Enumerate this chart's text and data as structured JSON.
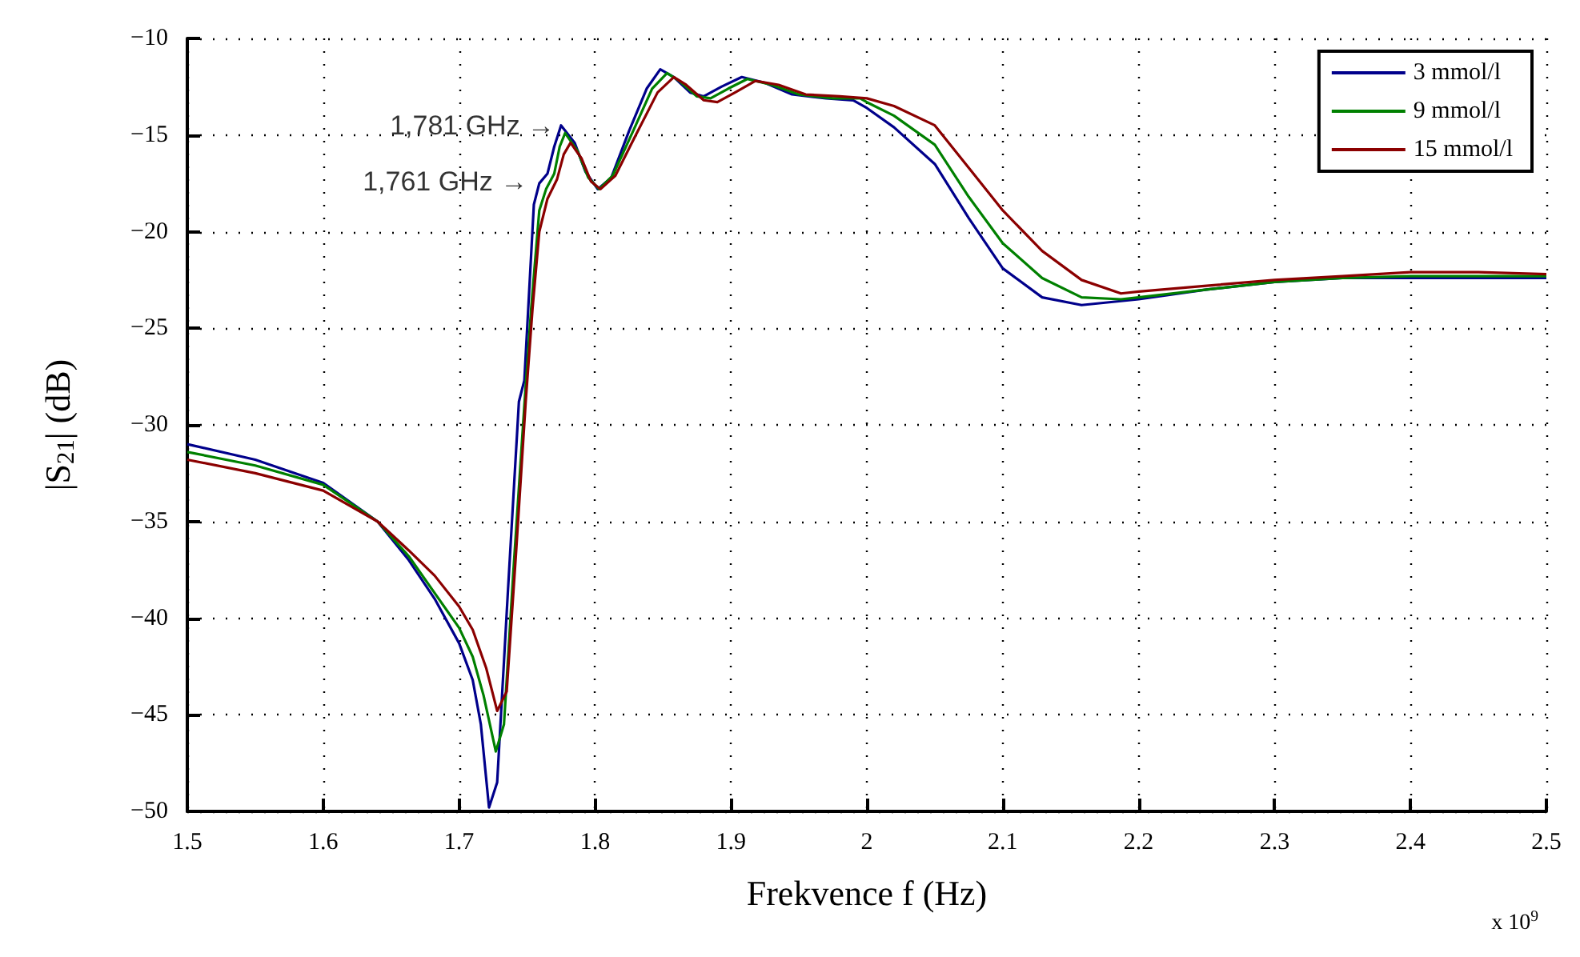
{
  "chart_data": {
    "type": "line",
    "xlabel": "Frekvence f (Hz)",
    "ylabel": "|S$_{21}$| (dB)",
    "xlim": [
      1.5,
      2.5
    ],
    "xticks": [
      1.5,
      1.6,
      1.7,
      1.8,
      1.9,
      2,
      2.1,
      2.2,
      2.3,
      2.4,
      2.5
    ],
    "ylim": [
      -50,
      -10
    ],
    "yticks": [
      -50,
      -45,
      -40,
      -35,
      -30,
      -25,
      -20,
      -15,
      -10
    ],
    "grid": true,
    "legend": "top right",
    "marker": "none",
    "line_style": "solid",
    "annotations": [
      {
        "text": "1,781 GHz →",
        "x": 1.781,
        "y": -14.5
      },
      {
        "text": "1,761 GHz →",
        "x": 1.761,
        "y": -17.4
      },
      "x 10$^{9}$"
    ],
    "series": [
      {
        "name": "3 mmol/l",
        "color": "#00008b",
        "x": [
          1.5,
          1.55,
          1.6,
          1.64,
          1.663,
          1.682,
          1.7,
          1.71,
          1.716,
          1.722,
          1.728,
          1.736,
          1.744,
          1.748,
          1.755,
          1.759,
          1.765,
          1.77,
          1.775,
          1.785,
          1.793,
          1.802,
          1.812,
          1.825,
          1.838,
          1.848,
          1.858,
          1.87,
          1.88,
          1.893,
          1.908,
          1.925,
          1.945,
          1.97,
          1.99,
          2,
          2.02,
          2.05,
          2.075,
          2.1,
          2.129,
          2.158,
          2.2,
          2.25,
          2.3,
          2.35,
          2.4,
          2.45,
          2.5
        ],
        "values": [
          -31.0,
          -31.8,
          -33.0,
          -35.0,
          -37.0,
          -39.0,
          -41.3,
          -43.2,
          -45.5,
          -49.8,
          -48.5,
          -38.5,
          -28.8,
          -27.7,
          -18.6,
          -17.5,
          -17.0,
          -15.6,
          -14.5,
          -15.4,
          -16.9,
          -17.8,
          -17.2,
          -14.8,
          -12.6,
          -11.6,
          -12.0,
          -12.8,
          -13.0,
          -12.5,
          -12.0,
          -12.3,
          -12.9,
          -13.1,
          -13.2,
          -13.6,
          -14.6,
          -16.5,
          -19.3,
          -21.9,
          -23.4,
          -23.8,
          -23.5,
          -23.0,
          -22.6,
          -22.4,
          -22.4,
          -22.4,
          -22.4
        ]
      },
      {
        "name": "9 mmol/l",
        "color": "#008000",
        "x": [
          1.5,
          1.55,
          1.6,
          1.64,
          1.663,
          1.682,
          1.7,
          1.71,
          1.718,
          1.727,
          1.733,
          1.74,
          1.748,
          1.753,
          1.759,
          1.764,
          1.77,
          1.774,
          1.778,
          1.787,
          1.795,
          1.803,
          1.813,
          1.828,
          1.842,
          1.853,
          1.862,
          1.875,
          1.885,
          1.898,
          1.912,
          1.93,
          1.95,
          1.975,
          1.995,
          2,
          2.02,
          2.05,
          2.075,
          2.1,
          2.129,
          2.158,
          2.187,
          2.2,
          2.25,
          2.3,
          2.35,
          2.4,
          2.45,
          2.5
        ],
        "values": [
          -31.4,
          -32.1,
          -33.1,
          -35.0,
          -36.8,
          -38.7,
          -40.5,
          -42.0,
          -44.0,
          -46.9,
          -45.5,
          -37.5,
          -29.0,
          -24.0,
          -18.9,
          -17.8,
          -17.0,
          -15.6,
          -14.9,
          -15.8,
          -17.2,
          -17.8,
          -17.1,
          -14.8,
          -12.6,
          -11.8,
          -12.2,
          -13.0,
          -13.1,
          -12.6,
          -12.1,
          -12.4,
          -12.9,
          -13.1,
          -13.1,
          -13.3,
          -14.0,
          -15.5,
          -18.2,
          -20.6,
          -22.4,
          -23.4,
          -23.5,
          -23.4,
          -23.0,
          -22.6,
          -22.4,
          -22.3,
          -22.3,
          -22.3
        ]
      },
      {
        "name": "15 mmol/l",
        "color": "#8b0000",
        "x": [
          1.5,
          1.55,
          1.6,
          1.64,
          1.663,
          1.682,
          1.7,
          1.71,
          1.72,
          1.728,
          1.735,
          1.742,
          1.749,
          1.754,
          1.759,
          1.765,
          1.772,
          1.777,
          1.782,
          1.79,
          1.797,
          1.804,
          1.815,
          1.83,
          1.846,
          1.858,
          1.867,
          1.88,
          1.89,
          1.903,
          1.918,
          1.935,
          1.955,
          1.98,
          2,
          2.02,
          2.05,
          2.075,
          2.1,
          2.129,
          2.158,
          2.187,
          2.2,
          2.25,
          2.3,
          2.35,
          2.4,
          2.45,
          2.5
        ],
        "values": [
          -31.8,
          -32.5,
          -33.4,
          -35.0,
          -36.5,
          -37.8,
          -39.4,
          -40.6,
          -42.6,
          -44.8,
          -43.8,
          -36.5,
          -28.8,
          -24.0,
          -20.0,
          -18.3,
          -17.3,
          -16.0,
          -15.4,
          -16.2,
          -17.4,
          -17.8,
          -17.1,
          -15.0,
          -12.8,
          -12.0,
          -12.4,
          -13.2,
          -13.3,
          -12.8,
          -12.2,
          -12.4,
          -12.9,
          -13.0,
          -13.1,
          -13.5,
          -14.5,
          -16.7,
          -18.9,
          -21.0,
          -22.5,
          -23.2,
          -23.1,
          -22.8,
          -22.5,
          -22.3,
          -22.1,
          -22.1,
          -22.2
        ]
      }
    ]
  }
}
